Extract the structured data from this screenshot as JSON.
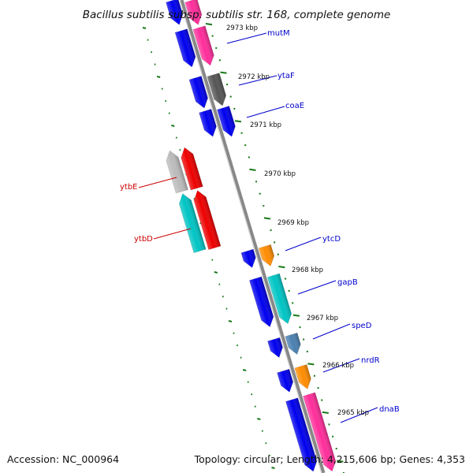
{
  "header": {
    "title": "Bacillus subtilis subsp. subtilis str. 168, complete genome"
  },
  "footer": {
    "accession": "Accession: NC_000964",
    "summary": "Topology: circular; Length: 4,215,606 bp; Genes: 4,353"
  },
  "colors": {
    "backbone": "#8a8a8a",
    "ticks": "#1a7a1a",
    "label_forward": "#0000cc",
    "label_reverse": "#cc0000"
  },
  "scale_labels": [
    {
      "text": "2973 kbp",
      "kbp": 2973
    },
    {
      "text": "2972 kbp",
      "kbp": 2972
    },
    {
      "text": "2971 kbp",
      "kbp": 2971
    },
    {
      "text": "2970 kbp",
      "kbp": 2970
    },
    {
      "text": "2969 kbp",
      "kbp": 2969
    },
    {
      "text": "2968 kbp",
      "kbp": 2968
    },
    {
      "text": "2967 kbp",
      "kbp": 2967
    },
    {
      "text": "2966 kbp",
      "kbp": 2966
    },
    {
      "text": "2965 kbp",
      "kbp": 2965
    }
  ],
  "gene_labels": [
    {
      "name": "mutM",
      "strand": "forward"
    },
    {
      "name": "ytaF",
      "strand": "forward"
    },
    {
      "name": "coaE",
      "strand": "forward"
    },
    {
      "name": "ytbE",
      "strand": "reverse"
    },
    {
      "name": "ytbD",
      "strand": "reverse"
    },
    {
      "name": "ytcD",
      "strand": "forward"
    },
    {
      "name": "gapB",
      "strand": "forward"
    },
    {
      "name": "speD",
      "strand": "forward"
    },
    {
      "name": "nrdR",
      "strand": "forward"
    },
    {
      "name": "dnaB",
      "strand": "forward"
    }
  ],
  "features": [
    {
      "color": "#0000ee",
      "direction": "down"
    },
    {
      "color": "#ff2d9a",
      "direction": "down"
    },
    {
      "color": "#0000ee",
      "direction": "down"
    },
    {
      "color": "#ff2d9a",
      "direction": "down"
    },
    {
      "color": "#0000ee",
      "direction": "down"
    },
    {
      "color": "#555555",
      "direction": "down"
    },
    {
      "color": "#0000ee",
      "direction": "down"
    },
    {
      "color": "#0000ee",
      "direction": "down"
    },
    {
      "color": "#bbbbbb",
      "direction": "up"
    },
    {
      "color": "#ee0000",
      "direction": "up"
    },
    {
      "color": "#00c4c4",
      "direction": "up"
    },
    {
      "color": "#ee0000",
      "direction": "up"
    },
    {
      "color": "#0000ee",
      "direction": "down"
    },
    {
      "color": "#ff8c00",
      "direction": "down"
    },
    {
      "color": "#0000ee",
      "direction": "down"
    },
    {
      "color": "#00c4c4",
      "direction": "down"
    },
    {
      "color": "#0000ee",
      "direction": "down"
    },
    {
      "color": "#4a7fb0",
      "direction": "down"
    },
    {
      "color": "#0000ee",
      "direction": "down"
    },
    {
      "color": "#ff8c00",
      "direction": "down"
    },
    {
      "color": "#0000ee",
      "direction": "down"
    },
    {
      "color": "#ff2d9a",
      "direction": "down"
    }
  ]
}
